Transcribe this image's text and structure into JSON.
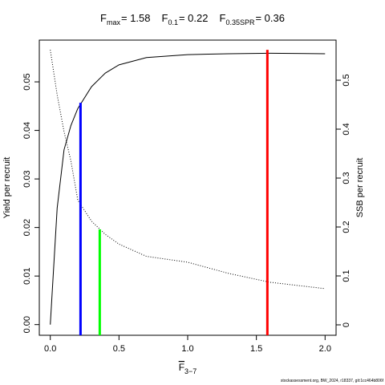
{
  "chart_data": {
    "type": "line",
    "title": {
      "symbol": "F",
      "parts": [
        {
          "subscript": "max",
          "label": "= 1.58"
        },
        {
          "subscript": "0.1",
          "label": "= 0.22"
        },
        {
          "subscript": "0.35SPR",
          "label": "= 0.36"
        }
      ]
    },
    "xlabel": {
      "symbol": "F",
      "subscript": "3−7"
    },
    "ylabel": "Yield per recruit",
    "y2label": "SSB per recruit",
    "footer": "stockassessment.org, BW_2024, r18337, git:1cc464b806f",
    "x": [
      0,
      0.05,
      0.1,
      0.15,
      0.2,
      0.3,
      0.4,
      0.5,
      0.7,
      1.0,
      1.3,
      1.6,
      2.0
    ],
    "series": [
      {
        "name": "Yield per recruit",
        "color": "#000000",
        "dash": "none",
        "values": [
          0,
          0.024,
          0.036,
          0.041,
          0.0445,
          0.049,
          0.0518,
          0.0535,
          0.055,
          0.0556,
          0.0558,
          0.0559,
          0.0558
        ]
      },
      {
        "name": "SSB per recruit",
        "color": "#000000",
        "dash": "1 2",
        "axis": "y2",
        "values": [
          0.562,
          0.47,
          0.395,
          0.335,
          0.255,
          0.212,
          0.185,
          0.165,
          0.14,
          0.128,
          0.105,
          0.087,
          0.074
        ]
      }
    ],
    "reference_lines": [
      {
        "x": 1.58,
        "top": 0.0566,
        "axis": "y",
        "color": "#ff0000"
      },
      {
        "x": 0.22,
        "top": 0.0457,
        "axis": "y",
        "color": "#0000ff"
      },
      {
        "x": 0.36,
        "top": 0.195,
        "axis": "y2",
        "color": "#00ff00"
      }
    ],
    "xlim": [
      -0.08,
      2.08
    ],
    "xticks": [
      {
        "value": 0,
        "label": "0.0"
      },
      {
        "value": 0.5,
        "label": "0.5"
      },
      {
        "value": 1,
        "label": "1.0"
      },
      {
        "value": 1.5,
        "label": "1.5"
      },
      {
        "value": 2,
        "label": "2.0"
      }
    ],
    "ylim": [
      -0.0022,
      0.0586
    ],
    "yticks": [
      {
        "value": 0,
        "label": "0.00"
      },
      {
        "value": 0.01,
        "label": "0.01"
      },
      {
        "value": 0.02,
        "label": "0.02"
      },
      {
        "value": 0.03,
        "label": "0.03"
      },
      {
        "value": 0.04,
        "label": "0.04"
      },
      {
        "value": 0.05,
        "label": "0.05"
      }
    ],
    "y2lim": [
      -0.0213,
      0.582
    ],
    "y2ticks": [
      0,
      0.1,
      0.2,
      0.3,
      0.4,
      0.5
    ]
  }
}
